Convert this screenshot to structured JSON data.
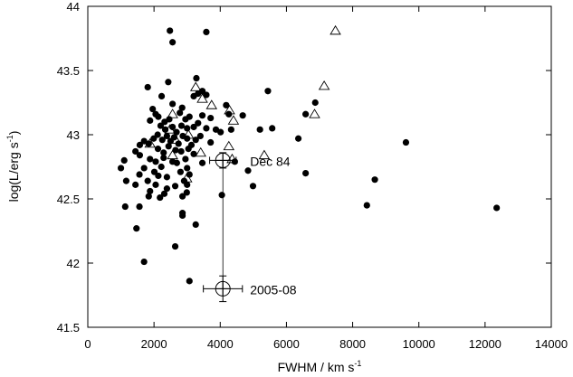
{
  "chart_data": {
    "type": "scatter",
    "xlabel": "FWHM / km s",
    "xlabel_sup": "-1",
    "ylabel": "log(L/erg s",
    "ylabel_sup": "-1",
    "ylabel_close": ")",
    "xlim": [
      0,
      14000
    ],
    "ylim": [
      41.5,
      44
    ],
    "xticks": [
      0,
      2000,
      4000,
      6000,
      8000,
      10000,
      12000,
      14000
    ],
    "yticks": [
      41.5,
      42,
      42.5,
      43,
      43.5,
      44
    ],
    "xtick_labels": [
      "0",
      "2000",
      "4000",
      "6000",
      "8000",
      "10000",
      "12000",
      "14000"
    ],
    "ytick_labels": [
      "41.5",
      "42",
      "42.5",
      "43",
      "43.5",
      "44"
    ],
    "grid": false,
    "series": [
      {
        "marker": "filled-circle",
        "points": [
          [
            2480,
            43.81
          ],
          [
            2560,
            43.72
          ],
          [
            3580,
            43.8
          ],
          [
            1810,
            43.37
          ],
          [
            2430,
            43.41
          ],
          [
            3280,
            43.44
          ],
          [
            5440,
            43.34
          ],
          [
            2230,
            43.3
          ],
          [
            2560,
            43.24
          ],
          [
            2850,
            43.21
          ],
          [
            3200,
            43.3
          ],
          [
            3330,
            43.32
          ],
          [
            3460,
            43.34
          ],
          [
            3580,
            43.31
          ],
          [
            4180,
            43.23
          ],
          [
            6580,
            43.16
          ],
          [
            6870,
            43.25
          ],
          [
            1960,
            43.2
          ],
          [
            2050,
            43.16
          ],
          [
            2130,
            43.14
          ],
          [
            2320,
            43.1
          ],
          [
            2460,
            43.12
          ],
          [
            2780,
            43.17
          ],
          [
            2950,
            43.12
          ],
          [
            3070,
            43.14
          ],
          [
            3460,
            43.15
          ],
          [
            3710,
            43.13
          ],
          [
            4260,
            43.16
          ],
          [
            4680,
            43.15
          ],
          [
            1880,
            43.11
          ],
          [
            2200,
            43.07
          ],
          [
            2340,
            43.04
          ],
          [
            2560,
            43.06
          ],
          [
            2680,
            43.02
          ],
          [
            2830,
            43.07
          ],
          [
            3000,
            43.05
          ],
          [
            3200,
            43.06
          ],
          [
            3330,
            43.09
          ],
          [
            3580,
            43.05
          ],
          [
            3870,
            43.04
          ],
          [
            4010,
            43.02
          ],
          [
            4330,
            43.04
          ],
          [
            5200,
            43.04
          ],
          [
            5570,
            43.05
          ],
          [
            6360,
            42.97
          ],
          [
            1570,
            42.92
          ],
          [
            1700,
            42.95
          ],
          [
            1840,
            42.93
          ],
          [
            1990,
            42.97
          ],
          [
            2110,
            43.0
          ],
          [
            2250,
            42.96
          ],
          [
            2390,
            42.99
          ],
          [
            2500,
            42.95
          ],
          [
            2610,
            42.98
          ],
          [
            2740,
            42.93
          ],
          [
            2870,
            42.99
          ],
          [
            3000,
            42.97
          ],
          [
            3130,
            42.92
          ],
          [
            3260,
            42.96
          ],
          [
            3400,
            42.99
          ],
          [
            3710,
            42.94
          ],
          [
            1440,
            42.87
          ],
          [
            1570,
            42.84
          ],
          [
            2120,
            42.89
          ],
          [
            2290,
            42.86
          ],
          [
            2440,
            42.91
          ],
          [
            2650,
            42.88
          ],
          [
            2820,
            42.87
          ],
          [
            3040,
            42.89
          ],
          [
            3200,
            42.85
          ],
          [
            1100,
            42.8
          ],
          [
            1880,
            42.81
          ],
          [
            2050,
            42.79
          ],
          [
            2290,
            42.82
          ],
          [
            2560,
            42.79
          ],
          [
            2690,
            42.78
          ],
          [
            2950,
            42.81
          ],
          [
            3460,
            42.78
          ],
          [
            4440,
            42.79
          ],
          [
            1000,
            42.74
          ],
          [
            1700,
            42.74
          ],
          [
            2220,
            42.75
          ],
          [
            2800,
            42.71
          ],
          [
            3000,
            42.74
          ],
          [
            4840,
            42.72
          ],
          [
            1560,
            42.69
          ],
          [
            2010,
            42.71
          ],
          [
            2130,
            42.68
          ],
          [
            2390,
            42.67
          ],
          [
            2910,
            42.64
          ],
          [
            3070,
            42.69
          ],
          [
            6580,
            42.7
          ],
          [
            8670,
            42.65
          ],
          [
            9610,
            42.94
          ],
          [
            1440,
            42.61
          ],
          [
            1810,
            42.64
          ],
          [
            2050,
            42.61
          ],
          [
            2390,
            42.58
          ],
          [
            2640,
            42.6
          ],
          [
            3000,
            42.61
          ],
          [
            4990,
            42.6
          ],
          [
            1160,
            42.64
          ],
          [
            1560,
            42.44
          ],
          [
            1880,
            42.56
          ],
          [
            2180,
            42.51
          ],
          [
            2310,
            42.54
          ],
          [
            1840,
            42.52
          ],
          [
            2860,
            42.52
          ],
          [
            2990,
            42.55
          ],
          [
            4050,
            42.53
          ],
          [
            1130,
            42.44
          ],
          [
            2860,
            42.39
          ],
          [
            2860,
            42.37
          ],
          [
            1470,
            42.27
          ],
          [
            3260,
            42.3
          ],
          [
            2640,
            42.13
          ],
          [
            1700,
            42.01
          ],
          [
            3070,
            41.86
          ],
          [
            8430,
            42.45
          ],
          [
            12350,
            42.43
          ]
        ]
      },
      {
        "marker": "open-triangle",
        "points": [
          [
            7480,
            43.81
          ],
          [
            7140,
            43.38
          ],
          [
            3260,
            43.37
          ],
          [
            3460,
            43.28
          ],
          [
            3740,
            43.23
          ],
          [
            4280,
            43.19
          ],
          [
            6850,
            43.16
          ],
          [
            4400,
            43.11
          ],
          [
            2560,
            43.16
          ],
          [
            2480,
            43.04
          ],
          [
            3040,
            43.0
          ],
          [
            2650,
            42.96
          ],
          [
            1880,
            42.93
          ],
          [
            4260,
            42.91
          ],
          [
            3410,
            42.86
          ],
          [
            5330,
            42.84
          ],
          [
            4360,
            42.81
          ],
          [
            2560,
            42.84
          ],
          [
            2990,
            42.66
          ]
        ]
      }
    ],
    "highlighted_points": [
      {
        "label": "Dec 84",
        "x": 4080,
        "y": 42.8,
        "xerr": 400,
        "yerr": 0.06
      },
      {
        "label": "2005-08",
        "x": 4080,
        "y": 41.8,
        "xerr": 590,
        "yerr": 0.1
      }
    ]
  }
}
